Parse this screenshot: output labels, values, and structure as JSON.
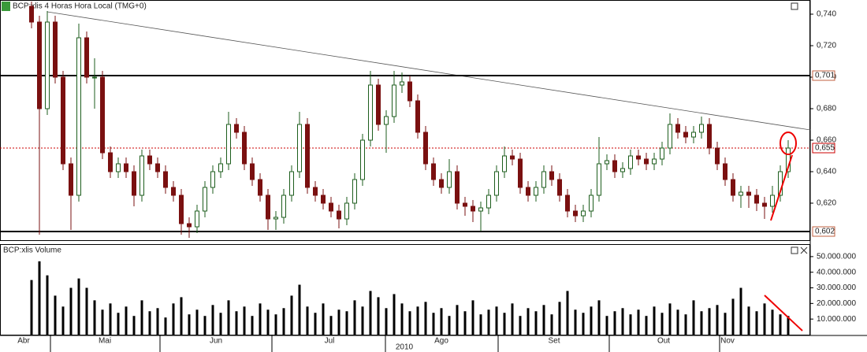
{
  "chart_data": [
    {
      "type": "candlestick",
      "title": "BCP:xlis 4 Horas Hora Local (TMG+0)",
      "ylim": [
        0.5965,
        0.749
      ],
      "yticks": [
        {
          "value": 0.62,
          "label": "0,620"
        },
        {
          "value": 0.64,
          "label": "0,640"
        },
        {
          "value": 0.66,
          "label": "0,660"
        },
        {
          "value": 0.68,
          "label": "0,680"
        },
        {
          "value": 0.7,
          "label": "0,700"
        },
        {
          "value": 0.72,
          "label": "0,720"
        },
        {
          "value": 0.74,
          "label": "0,740"
        }
      ],
      "xlim": [
        -4,
        98.8
      ],
      "xticks": [
        2.4,
        16.3,
        30.5,
        44.9,
        59.2,
        73.3,
        87.3
      ],
      "x_labels": [
        {
          "value": -1,
          "label": "Abr"
        },
        {
          "value": 9.3,
          "label": "Mai"
        },
        {
          "value": 23.4,
          "label": "Jun"
        },
        {
          "value": 37.8,
          "label": "Jul"
        },
        {
          "value": 52,
          "label": "Ago"
        },
        {
          "value": 66.3,
          "label": "Set"
        },
        {
          "value": 80.2,
          "label": "Out"
        },
        {
          "value": 88.3,
          "label": "Nov"
        }
      ],
      "year_label": {
        "value": 47.3,
        "label": "2010"
      },
      "hlines": [
        {
          "value": 0.701,
          "label": "0,701"
        },
        {
          "value": 0.602,
          "label": "0,602"
        }
      ],
      "last_price": {
        "value": 0.655,
        "label": "0,655"
      },
      "up_color": "#1d5e1d",
      "down_color": "#7a1010",
      "ohlc": [
        [
          0.745,
          0.748,
          0.731,
          0.735
        ],
        [
          0.735,
          0.739,
          0.6,
          0.68
        ],
        [
          0.68,
          0.742,
          0.676,
          0.735
        ],
        [
          0.735,
          0.739,
          0.696,
          0.7
        ],
        [
          0.7,
          0.704,
          0.641,
          0.645
        ],
        [
          0.645,
          0.649,
          0.603,
          0.625
        ],
        [
          0.625,
          0.734,
          0.621,
          0.725
        ],
        [
          0.725,
          0.729,
          0.696,
          0.7
        ],
        [
          0.7,
          0.712,
          0.68,
          0.7
        ],
        [
          0.7,
          0.704,
          0.648,
          0.652
        ],
        [
          0.652,
          0.656,
          0.636,
          0.64
        ],
        [
          0.64,
          0.649,
          0.636,
          0.645
        ],
        [
          0.645,
          0.649,
          0.636,
          0.64
        ],
        [
          0.64,
          0.644,
          0.618,
          0.625
        ],
        [
          0.625,
          0.654,
          0.621,
          0.65
        ],
        [
          0.65,
          0.654,
          0.641,
          0.645
        ],
        [
          0.645,
          0.649,
          0.636,
          0.64
        ],
        [
          0.64,
          0.644,
          0.626,
          0.63
        ],
        [
          0.63,
          0.634,
          0.621,
          0.625
        ],
        [
          0.625,
          0.629,
          0.6,
          0.607
        ],
        [
          0.607,
          0.611,
          0.598,
          0.605
        ],
        [
          0.605,
          0.619,
          0.601,
          0.615
        ],
        [
          0.615,
          0.634,
          0.611,
          0.63
        ],
        [
          0.63,
          0.644,
          0.626,
          0.64
        ],
        [
          0.64,
          0.649,
          0.636,
          0.645
        ],
        [
          0.645,
          0.678,
          0.641,
          0.67
        ],
        [
          0.67,
          0.674,
          0.661,
          0.665
        ],
        [
          0.665,
          0.669,
          0.641,
          0.645
        ],
        [
          0.645,
          0.649,
          0.631,
          0.635
        ],
        [
          0.635,
          0.639,
          0.621,
          0.625
        ],
        [
          0.625,
          0.629,
          0.603,
          0.61
        ],
        [
          0.61,
          0.615,
          0.603,
          0.611
        ],
        [
          0.611,
          0.629,
          0.607,
          0.625
        ],
        [
          0.625,
          0.644,
          0.621,
          0.64
        ],
        [
          0.64,
          0.678,
          0.636,
          0.67
        ],
        [
          0.67,
          0.674,
          0.626,
          0.63
        ],
        [
          0.63,
          0.634,
          0.621,
          0.625
        ],
        [
          0.625,
          0.629,
          0.616,
          0.62
        ],
        [
          0.62,
          0.624,
          0.611,
          0.615
        ],
        [
          0.615,
          0.619,
          0.604,
          0.61
        ],
        [
          0.61,
          0.624,
          0.606,
          0.62
        ],
        [
          0.62,
          0.639,
          0.616,
          0.635
        ],
        [
          0.635,
          0.664,
          0.631,
          0.66
        ],
        [
          0.66,
          0.704,
          0.656,
          0.695
        ],
        [
          0.695,
          0.699,
          0.666,
          0.67
        ],
        [
          0.67,
          0.679,
          0.652,
          0.675
        ],
        [
          0.675,
          0.704,
          0.671,
          0.695
        ],
        [
          0.695,
          0.703,
          0.69,
          0.697
        ],
        [
          0.697,
          0.701,
          0.681,
          0.685
        ],
        [
          0.685,
          0.689,
          0.661,
          0.665
        ],
        [
          0.665,
          0.669,
          0.641,
          0.645
        ],
        [
          0.645,
          0.649,
          0.631,
          0.635
        ],
        [
          0.635,
          0.639,
          0.626,
          0.63
        ],
        [
          0.63,
          0.648,
          0.626,
          0.64
        ],
        [
          0.64,
          0.644,
          0.616,
          0.62
        ],
        [
          0.62,
          0.624,
          0.612,
          0.618
        ],
        [
          0.618,
          0.622,
          0.608,
          0.615
        ],
        [
          0.615,
          0.621,
          0.602,
          0.617
        ],
        [
          0.617,
          0.629,
          0.613,
          0.625
        ],
        [
          0.625,
          0.644,
          0.621,
          0.64
        ],
        [
          0.64,
          0.656,
          0.636,
          0.65
        ],
        [
          0.65,
          0.654,
          0.644,
          0.648
        ],
        [
          0.648,
          0.652,
          0.626,
          0.63
        ],
        [
          0.63,
          0.634,
          0.621,
          0.625
        ],
        [
          0.625,
          0.634,
          0.621,
          0.63
        ],
        [
          0.63,
          0.644,
          0.626,
          0.64
        ],
        [
          0.64,
          0.644,
          0.631,
          0.635
        ],
        [
          0.635,
          0.639,
          0.621,
          0.625
        ],
        [
          0.625,
          0.629,
          0.611,
          0.615
        ],
        [
          0.615,
          0.619,
          0.608,
          0.612
        ],
        [
          0.612,
          0.619,
          0.608,
          0.615
        ],
        [
          0.615,
          0.629,
          0.611,
          0.625
        ],
        [
          0.625,
          0.662,
          0.621,
          0.645
        ],
        [
          0.645,
          0.651,
          0.641,
          0.647
        ],
        [
          0.647,
          0.651,
          0.636,
          0.64
        ],
        [
          0.64,
          0.646,
          0.636,
          0.642
        ],
        [
          0.642,
          0.654,
          0.638,
          0.65
        ],
        [
          0.65,
          0.654,
          0.644,
          0.648
        ],
        [
          0.648,
          0.652,
          0.641,
          0.645
        ],
        [
          0.645,
          0.652,
          0.641,
          0.648
        ],
        [
          0.648,
          0.659,
          0.644,
          0.655
        ],
        [
          0.655,
          0.677,
          0.651,
          0.67
        ],
        [
          0.67,
          0.674,
          0.661,
          0.665
        ],
        [
          0.665,
          0.669,
          0.658,
          0.662
        ],
        [
          0.662,
          0.669,
          0.658,
          0.665
        ],
        [
          0.665,
          0.675,
          0.661,
          0.67
        ],
        [
          0.67,
          0.674,
          0.651,
          0.655
        ],
        [
          0.655,
          0.659,
          0.641,
          0.645
        ],
        [
          0.645,
          0.649,
          0.631,
          0.635
        ],
        [
          0.635,
          0.639,
          0.621,
          0.625
        ],
        [
          0.625,
          0.631,
          0.617,
          0.627
        ],
        [
          0.627,
          0.631,
          0.617,
          0.625
        ],
        [
          0.625,
          0.629,
          0.615,
          0.62
        ],
        [
          0.62,
          0.624,
          0.61,
          0.618
        ],
        [
          0.618,
          0.631,
          0.614,
          0.625
        ],
        [
          0.625,
          0.644,
          0.621,
          0.64
        ],
        [
          0.64,
          0.66,
          0.636,
          0.655
        ]
      ]
    },
    {
      "type": "bar",
      "title": "BCP:xlis Volume",
      "color": "#000000",
      "ylim": [
        0,
        57500000
      ],
      "yticks": [
        {
          "value": 10000000,
          "label": "10.000.000"
        },
        {
          "value": 20000000,
          "label": "20.000.000"
        },
        {
          "value": 30000000,
          "label": "30.000.000"
        },
        {
          "value": 40000000,
          "label": "40.000.000"
        },
        {
          "value": 50000000,
          "label": "50.000.000"
        }
      ],
      "values": [
        35000000,
        47000000,
        38000000,
        25000000,
        18000000,
        30000000,
        36000000,
        30000000,
        22000000,
        16000000,
        20000000,
        14000000,
        18000000,
        12000000,
        22000000,
        15000000,
        17000000,
        11000000,
        20000000,
        24000000,
        13000000,
        16000000,
        12000000,
        19000000,
        14000000,
        22000000,
        15000000,
        18000000,
        12000000,
        20000000,
        16000000,
        13000000,
        17000000,
        25000000,
        32000000,
        18000000,
        14000000,
        20000000,
        12000000,
        16000000,
        15000000,
        22000000,
        18000000,
        28000000,
        24000000,
        17000000,
        26000000,
        20000000,
        15000000,
        18000000,
        21000000,
        14000000,
        17000000,
        12000000,
        19000000,
        15000000,
        22000000,
        13000000,
        16000000,
        18000000,
        14000000,
        20000000,
        12000000,
        17000000,
        15000000,
        19000000,
        13000000,
        21000000,
        28000000,
        16000000,
        14000000,
        18000000,
        22000000,
        12000000,
        15000000,
        17000000,
        13000000,
        16000000,
        12000000,
        18000000,
        14000000,
        20000000,
        16000000,
        13000000,
        22000000,
        15000000,
        17000000,
        19000000,
        14000000,
        23000000,
        30000000,
        18000000,
        15000000,
        20000000,
        16000000,
        13000000,
        12000000
      ]
    }
  ]
}
